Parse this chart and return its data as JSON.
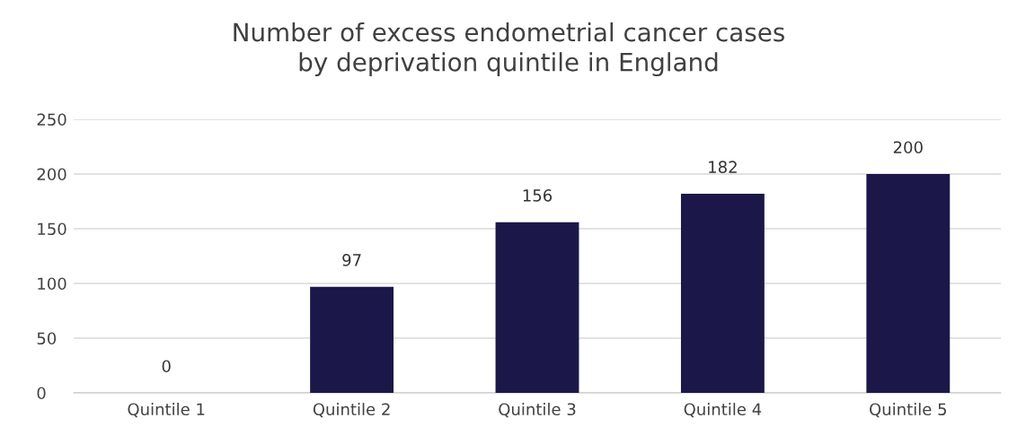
{
  "chart_data": {
    "type": "bar",
    "title": "Number of excess endometrial cancer cases\nby deprivation quintile in England",
    "categories": [
      "Quintile 1",
      "Quintile 2",
      "Quintile 3",
      "Quintile 4",
      "Quintile 5"
    ],
    "values": [
      0,
      97,
      156,
      182,
      200
    ],
    "color": "#1b1849",
    "ylim": [
      0,
      250
    ],
    "yticks": [
      0,
      50,
      100,
      150,
      200,
      250
    ],
    "grid": "y",
    "data_labels": true
  }
}
